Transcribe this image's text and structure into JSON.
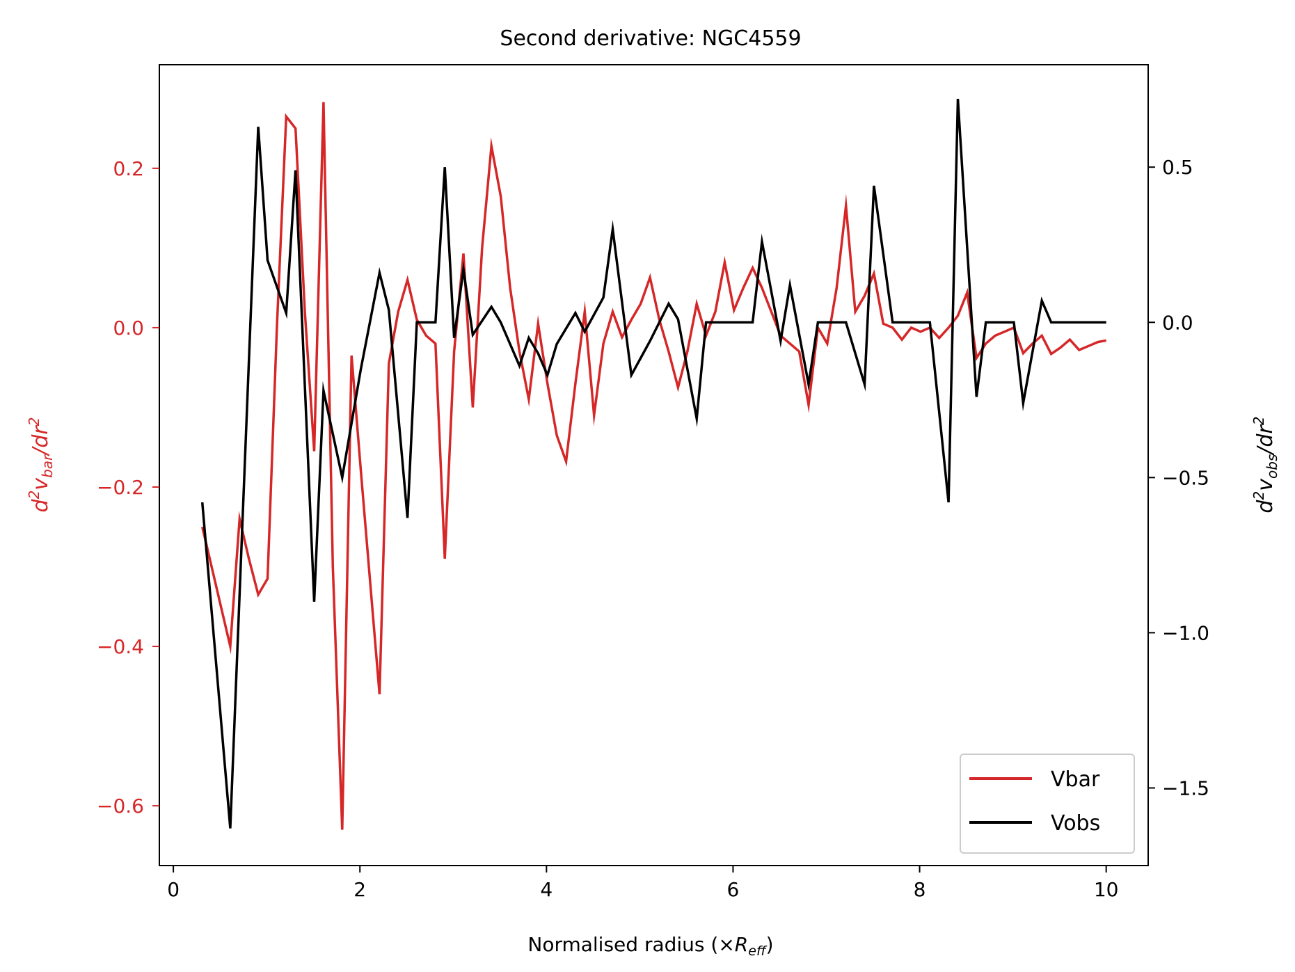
{
  "chart_data": {
    "type": "line",
    "title": "Second derivative: NGC4559",
    "xlabel": {
      "main": "Normalised radius (×",
      "sym": "R",
      "sub": "eff",
      "close": ")"
    },
    "ylabel_left": {
      "d": "d",
      "sup1": "2",
      "v": "v",
      "sub": "bar",
      "slash": "/dr",
      "sup2": "2"
    },
    "ylabel_right": {
      "d": "d",
      "sup1": "2",
      "v": "v",
      "sub": "obs",
      "slash": "/dr",
      "sup2": "2"
    },
    "xlim": [
      -0.15,
      10.45
    ],
    "ylim_left": [
      -0.675,
      0.33
    ],
    "ylim_right": [
      -1.75,
      0.83
    ],
    "xticks": [
      0,
      2,
      4,
      6,
      8,
      10
    ],
    "xtick_labels": [
      "0",
      "2",
      "4",
      "6",
      "8",
      "10"
    ],
    "yticks_left": [
      -0.6,
      -0.4,
      -0.2,
      0.0,
      0.2
    ],
    "ytick_labels_left": [
      "−0.6",
      "−0.4",
      "−0.2",
      "0.0",
      "0.2"
    ],
    "yticks_right": [
      -1.5,
      -1.0,
      -0.5,
      0.0,
      0.5
    ],
    "ytick_labels_right": [
      "−1.5",
      "−1.0",
      "−0.5",
      "0.0",
      "0.5"
    ],
    "grid": false,
    "legend_position": "lower-right",
    "colors": {
      "vbar": "#d62728",
      "vobs": "#000000",
      "left_axis": "#d62728",
      "right_axis": "#000000"
    },
    "series": [
      {
        "name": "Vbar",
        "axis": "left",
        "x": [
          0.31,
          0.41,
          0.51,
          0.61,
          0.71,
          0.81,
          0.91,
          1.01,
          1.11,
          1.21,
          1.31,
          1.41,
          1.51,
          1.61,
          1.71,
          1.81,
          1.91,
          2.01,
          2.11,
          2.21,
          2.31,
          2.41,
          2.51,
          2.61,
          2.71,
          2.81,
          2.91,
          3.01,
          3.11,
          3.21,
          3.31,
          3.41,
          3.51,
          3.61,
          3.71,
          3.81,
          3.91,
          4.01,
          4.11,
          4.21,
          4.31,
          4.41,
          4.51,
          4.61,
          4.71,
          4.81,
          4.91,
          5.01,
          5.11,
          5.21,
          5.31,
          5.41,
          5.51,
          5.61,
          5.71,
          5.81,
          5.91,
          6.01,
          6.11,
          6.21,
          6.31,
          6.41,
          6.51,
          6.61,
          6.71,
          6.81,
          6.91,
          7.01,
          7.11,
          7.21,
          7.31,
          7.41,
          7.51,
          7.61,
          7.71,
          7.81,
          7.91,
          8.01,
          8.11,
          8.21,
          8.31,
          8.41,
          8.51,
          8.61,
          8.71,
          8.81,
          8.91,
          9.01,
          9.11,
          9.21,
          9.31,
          9.41,
          9.51,
          9.61,
          9.71,
          9.81,
          9.91,
          10.0
        ],
        "y": [
          -0.25,
          -0.3,
          -0.35,
          -0.4,
          -0.24,
          -0.29,
          -0.335,
          -0.315,
          0.0,
          0.265,
          0.25,
          0.02,
          -0.155,
          0.283,
          -0.3,
          -0.63,
          -0.035,
          -0.18,
          -0.32,
          -0.46,
          -0.045,
          0.02,
          0.06,
          0.01,
          -0.01,
          -0.02,
          -0.29,
          -0.03,
          0.093,
          -0.1,
          0.1,
          0.228,
          0.165,
          0.05,
          -0.03,
          -0.09,
          0.005,
          -0.07,
          -0.135,
          -0.168,
          -0.07,
          0.02,
          -0.11,
          -0.02,
          0.02,
          -0.012,
          0.01,
          0.03,
          0.063,
          0.01,
          -0.03,
          -0.075,
          -0.03,
          0.03,
          -0.01,
          0.02,
          0.082,
          0.022,
          0.05,
          0.075,
          0.05,
          0.02,
          -0.01,
          -0.02,
          -0.03,
          -0.097,
          0.0,
          -0.02,
          0.05,
          0.153,
          0.02,
          0.04,
          0.068,
          0.005,
          0.0,
          -0.015,
          0.0,
          -0.005,
          0.0,
          -0.013,
          0.0,
          0.015,
          0.044,
          -0.038,
          -0.02,
          -0.01,
          -0.005,
          0.0,
          -0.032,
          -0.02,
          -0.01,
          -0.033,
          -0.025,
          -0.015,
          -0.028,
          -0.023,
          -0.018,
          -0.016
        ]
      },
      {
        "name": "Vobs",
        "axis": "right",
        "x": [
          0.31,
          0.61,
          0.91,
          1.01,
          1.21,
          1.31,
          1.51,
          1.61,
          1.81,
          2.01,
          2.21,
          2.31,
          2.51,
          2.61,
          2.81,
          2.91,
          3.01,
          3.11,
          3.21,
          3.41,
          3.51,
          3.71,
          3.81,
          3.91,
          4.01,
          4.11,
          4.31,
          4.41,
          4.61,
          4.71,
          4.91,
          5.11,
          5.31,
          5.41,
          5.61,
          5.71,
          5.91,
          6.11,
          6.21,
          6.31,
          6.51,
          6.61,
          6.81,
          6.91,
          7.11,
          7.21,
          7.41,
          7.51,
          7.71,
          7.91,
          8.11,
          8.31,
          8.41,
          8.61,
          8.71,
          8.91,
          9.01,
          9.11,
          9.31,
          9.41,
          9.61,
          9.81,
          10.0
        ],
        "y": [
          -0.58,
          -1.63,
          0.63,
          0.2,
          0.03,
          0.49,
          -0.9,
          -0.22,
          -0.5,
          -0.15,
          0.16,
          0.04,
          -0.63,
          0.0,
          0.0,
          0.5,
          -0.05,
          0.17,
          -0.04,
          0.05,
          0.0,
          -0.14,
          -0.05,
          -0.1,
          -0.17,
          -0.07,
          0.03,
          -0.03,
          0.08,
          0.3,
          -0.17,
          -0.06,
          0.06,
          0.01,
          -0.31,
          0.0,
          0.0,
          0.0,
          0.0,
          0.26,
          -0.06,
          0.12,
          -0.2,
          0.0,
          0.0,
          0.0,
          -0.2,
          0.44,
          0.0,
          0.0,
          0.0,
          -0.58,
          0.72,
          -0.24,
          0.0,
          0.0,
          0.0,
          -0.26,
          0.07,
          0.0,
          0.0,
          0.0,
          0.0
        ]
      }
    ]
  }
}
